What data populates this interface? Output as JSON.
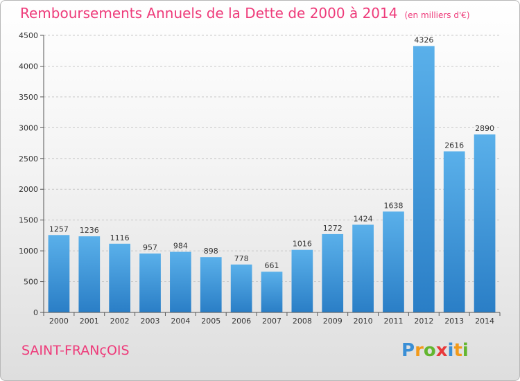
{
  "title": "Remboursements Annuels de la Dette de 2000 à 2014",
  "unit_note": "(en milliers d'€)",
  "commune": "SAINT-FRANçOIS",
  "logo": {
    "text": "Proxiti",
    "letters": [
      {
        "ch": "P",
        "color": "#3a8fd6"
      },
      {
        "ch": "r",
        "color": "#f29a1a"
      },
      {
        "ch": "o",
        "color": "#63b62f"
      },
      {
        "ch": "x",
        "color": "#e8393b"
      },
      {
        "ch": "i",
        "color": "#3a8fd6"
      },
      {
        "ch": "t",
        "color": "#f29a1a"
      },
      {
        "ch": "i",
        "color": "#63b62f"
      }
    ]
  },
  "colors": {
    "accent": "#ee3b7a",
    "bar_top": "#5ab0ea",
    "bar_bottom": "#2a7ec6",
    "grid": "#c8c8c8",
    "axis": "#555555"
  },
  "chart_data": {
    "type": "bar",
    "title": "Remboursements Annuels de la Dette de 2000 à 2014",
    "xlabel": "",
    "ylabel": "",
    "categories": [
      "2000",
      "2001",
      "2002",
      "2003",
      "2004",
      "2005",
      "2006",
      "2007",
      "2008",
      "2009",
      "2010",
      "2011",
      "2012",
      "2013",
      "2014"
    ],
    "values": [
      1257,
      1236,
      1116,
      957,
      984,
      898,
      778,
      661,
      1016,
      1272,
      1424,
      1638,
      4326,
      2616,
      2890
    ],
    "ylim": [
      0,
      4500
    ],
    "yticks": [
      0,
      500,
      1000,
      1500,
      2000,
      2500,
      3000,
      3500,
      4000,
      4500
    ],
    "grid": true,
    "data_labels": true
  }
}
